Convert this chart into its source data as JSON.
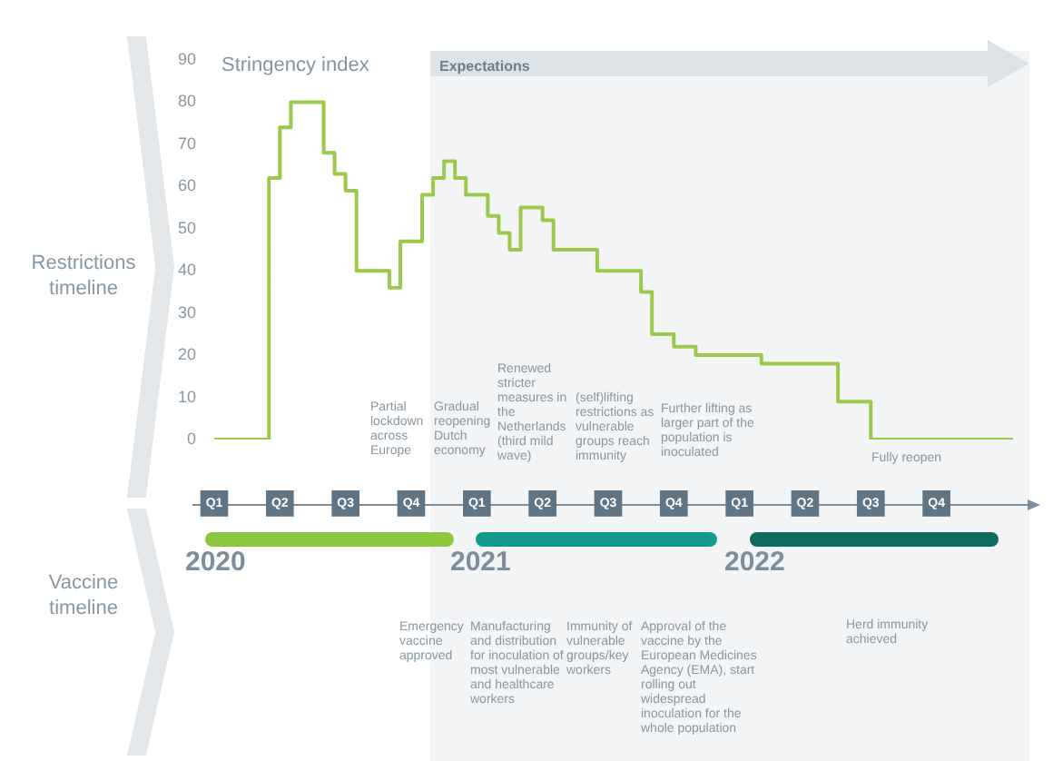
{
  "chart_data": {
    "type": "step",
    "title": "Stringency index",
    "categories": [
      "Q1",
      null,
      null,
      null,
      null,
      null,
      "Q2",
      null,
      null,
      null,
      null,
      null,
      "Q3",
      null,
      null,
      null,
      null,
      null,
      "Q4",
      null,
      null,
      null,
      null,
      null,
      "Q1",
      null,
      null,
      null,
      null,
      null,
      "Q2",
      null,
      null,
      null,
      null,
      null,
      "Q3",
      null,
      null,
      null,
      null,
      null,
      "Q4",
      null,
      null,
      null,
      null,
      null,
      "Q1",
      null,
      null,
      null,
      null,
      null,
      "Q2",
      null,
      null,
      null,
      null,
      null,
      "Q3",
      null,
      null,
      null,
      null,
      null,
      "Q4",
      null,
      null,
      null,
      null,
      null,
      null,
      null
    ],
    "series": [
      {
        "color": "#9cc84b",
        "values": [
          0,
          0,
          0,
          0,
          0,
          62,
          74,
          80,
          80,
          80,
          68,
          63,
          59,
          40,
          40,
          40,
          36,
          47,
          47,
          58,
          62,
          66,
          62,
          58,
          58,
          53,
          49,
          45,
          55,
          55,
          52,
          45,
          45,
          45,
          45,
          40,
          40,
          40,
          40,
          35,
          25,
          25,
          22,
          22,
          20,
          20,
          20,
          20,
          20,
          20,
          18,
          18,
          18,
          18,
          18,
          18,
          18,
          9,
          9,
          9,
          0,
          0,
          0,
          0,
          0,
          0,
          0,
          0,
          0,
          0,
          0,
          0,
          0,
          0
        ]
      }
    ],
    "ylim": [
      0,
      90
    ],
    "yticks": [
      0,
      10,
      20,
      30,
      40,
      50,
      60,
      70,
      80,
      90
    ],
    "grid": false,
    "legend": false,
    "annotations": [
      "Restrictions timeline",
      "Vaccine timeline",
      "Expectations",
      "2020",
      "2021",
      "2022",
      "Partial lockdown across Europe",
      "Gradual reopening Dutch economy",
      "Renewed stricter measures in the Netherlands (third mild wave)",
      "(self)lifting restrictions as vulnerable groups reach immunity",
      "Further lifting as larger part of the population is inoculated",
      "Fully reopen",
      "Emergency vaccine approved",
      "Manufacturing and distribution for inoculation of most vulnerable and healthcare workers",
      "Immunity of vulnerable groups/key workers",
      "Approval of the vaccine by the European Medicines Agency (EMA), start rolling out widespread inoculation for the whole population",
      "Herd immunity achieved"
    ]
  }
}
